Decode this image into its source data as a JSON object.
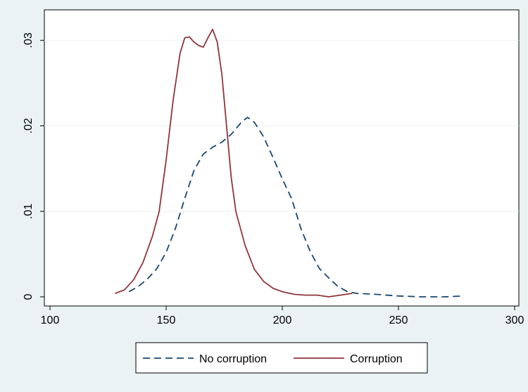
{
  "chart_data": {
    "type": "line",
    "title": "",
    "xlabel": "",
    "ylabel": "",
    "xlim": [
      100,
      300
    ],
    "ylim": [
      0,
      0.032
    ],
    "xticks": [
      {
        "value": 100,
        "label": "100"
      },
      {
        "value": 150,
        "label": "150"
      },
      {
        "value": 200,
        "label": "200"
      },
      {
        "value": 250,
        "label": "250"
      },
      {
        "value": 300,
        "label": "300"
      }
    ],
    "yticks": [
      {
        "value": 0,
        "label": "0"
      },
      {
        "value": 0.01,
        "label": ".01"
      },
      {
        "value": 0.02,
        "label": ".02"
      },
      {
        "value": 0.03,
        "label": ".03"
      }
    ],
    "grid": true,
    "legend_position": "bottom",
    "series": [
      {
        "name": "No corruption",
        "color": "#1a476f",
        "dash": "dashed",
        "points": [
          [
            134,
            0.0006
          ],
          [
            138,
            0.0012
          ],
          [
            142,
            0.0021
          ],
          [
            146,
            0.0033
          ],
          [
            150,
            0.0052
          ],
          [
            154,
            0.008
          ],
          [
            158,
            0.0115
          ],
          [
            162,
            0.0148
          ],
          [
            166,
            0.0167
          ],
          [
            170,
            0.0175
          ],
          [
            174,
            0.0181
          ],
          [
            178,
            0.019
          ],
          [
            182,
            0.0203
          ],
          [
            185,
            0.021
          ],
          [
            188,
            0.0204
          ],
          [
            192,
            0.0187
          ],
          [
            196,
            0.0163
          ],
          [
            200,
            0.0138
          ],
          [
            204,
            0.0115
          ],
          [
            208,
            0.008
          ],
          [
            212,
            0.0053
          ],
          [
            216,
            0.0033
          ],
          [
            220,
            0.0022
          ],
          [
            224,
            0.0012
          ],
          [
            228,
            0.0006
          ],
          [
            232,
            0.0004
          ],
          [
            240,
            0.0003
          ],
          [
            250,
            0.0001
          ],
          [
            260,
            0.0
          ],
          [
            270,
            0.0
          ],
          [
            278,
            0.0001
          ]
        ]
      },
      {
        "name": "Corruption",
        "color": "#90353b",
        "dash": "solid",
        "points": [
          [
            128,
            0.0004
          ],
          [
            132,
            0.0008
          ],
          [
            136,
            0.002
          ],
          [
            140,
            0.004
          ],
          [
            144,
            0.007
          ],
          [
            147,
            0.01
          ],
          [
            150,
            0.016
          ],
          [
            153,
            0.023
          ],
          [
            156,
            0.0285
          ],
          [
            158,
            0.0303
          ],
          [
            160,
            0.0304
          ],
          [
            162,
            0.0298
          ],
          [
            164,
            0.0294
          ],
          [
            166,
            0.0292
          ],
          [
            168,
            0.0303
          ],
          [
            170,
            0.0313
          ],
          [
            172,
            0.0298
          ],
          [
            174,
            0.026
          ],
          [
            176,
            0.02
          ],
          [
            178,
            0.014
          ],
          [
            180,
            0.01
          ],
          [
            184,
            0.006
          ],
          [
            188,
            0.0032
          ],
          [
            192,
            0.0018
          ],
          [
            196,
            0.001
          ],
          [
            200,
            0.0006
          ],
          [
            205,
            0.0003
          ],
          [
            210,
            0.0002
          ],
          [
            215,
            0.0002
          ],
          [
            220,
            0.0
          ],
          [
            225,
            0.0002
          ],
          [
            230,
            0.0004
          ]
        ]
      }
    ]
  }
}
